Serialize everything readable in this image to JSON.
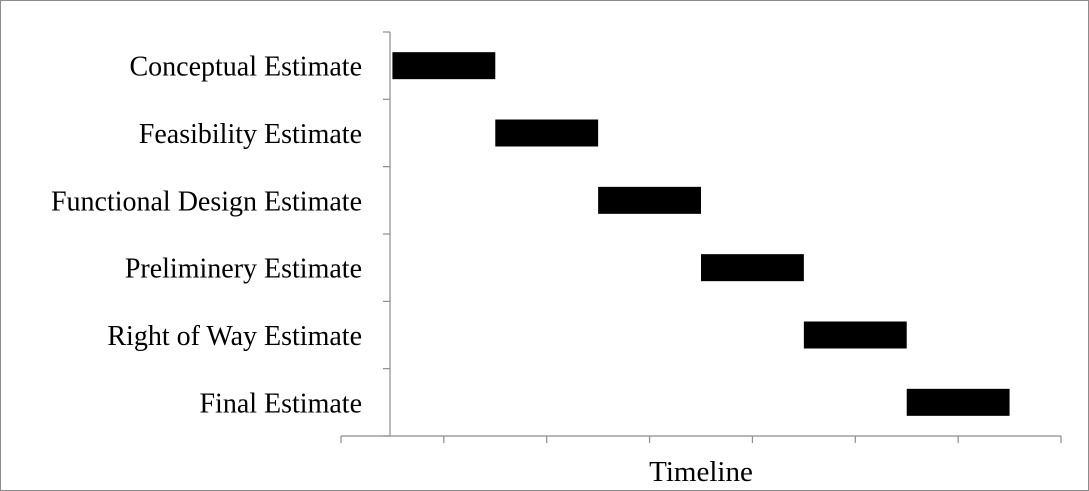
{
  "chart_data": {
    "type": "bar",
    "orientation": "horizontal",
    "stacked_gantt": true,
    "categories": [
      "Conceptual Estimate",
      "Feasibility Estimate",
      "Functional Design Estimate",
      "Preliminery Estimate",
      "Right of Way Estimate",
      "Final Estimate"
    ],
    "series": [
      {
        "role": "start",
        "values": [
          0.5,
          1.5,
          2.5,
          3.5,
          4.5,
          5.5
        ],
        "color": "none"
      },
      {
        "role": "duration",
        "values": [
          1,
          1,
          1,
          1,
          1,
          1
        ],
        "color": "#000000"
      }
    ],
    "xlabel": "Timeline",
    "ylabel": "",
    "xlim": [
      0,
      7
    ],
    "x_tick_count": 8,
    "x_tick_labels": false,
    "grid": false,
    "legend": "none"
  }
}
